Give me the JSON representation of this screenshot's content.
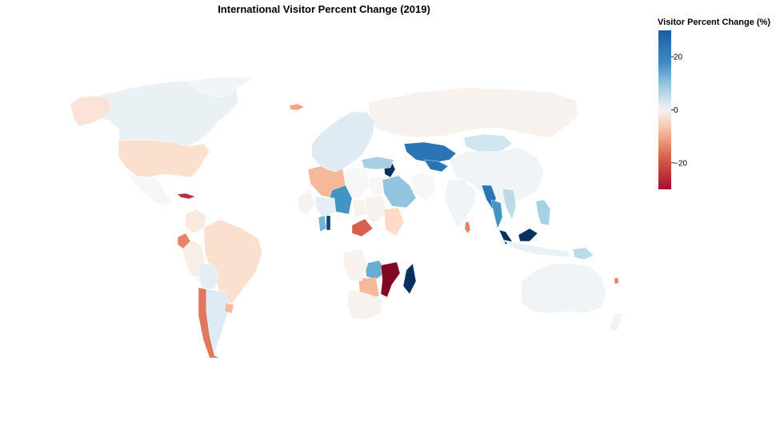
{
  "title": "International Visitor Percent Change (2019)",
  "legend": {
    "title": "Visitor Percent Change (%)",
    "min": -30,
    "max": 30,
    "ticks": [
      {
        "value": 20,
        "label": "20"
      },
      {
        "value": 0,
        "label": "0"
      },
      {
        "value": -20,
        "label": "−20"
      }
    ],
    "colors": [
      "#67001f",
      "#b2182b",
      "#d6604d",
      "#f4a582",
      "#fddbc7",
      "#f7f7f7",
      "#d1e5f0",
      "#92c5de",
      "#4393c3",
      "#2166ac",
      "#053061"
    ]
  },
  "chart_data": {
    "type": "choropleth",
    "scale": "diverging RdBu",
    "regions": [
      {
        "name": "Canada",
        "value": 2
      },
      {
        "name": "United States",
        "value": -5
      },
      {
        "name": "Greenland",
        "value": 1
      },
      {
        "name": "Alaska",
        "value": -4
      },
      {
        "name": "Iceland",
        "value": -12
      },
      {
        "name": "Mexico",
        "value": 0
      },
      {
        "name": "Cuba",
        "value": -22
      },
      {
        "name": "Colombia",
        "value": -3
      },
      {
        "name": "Ecuador",
        "value": -15
      },
      {
        "name": "Brazil",
        "value": -5
      },
      {
        "name": "Peru",
        "value": -2
      },
      {
        "name": "Bolivia",
        "value": 3
      },
      {
        "name": "Chile",
        "value": -16
      },
      {
        "name": "Argentina",
        "value": 4
      },
      {
        "name": "Uruguay",
        "value": -10
      },
      {
        "name": "Algeria",
        "value": -10
      },
      {
        "name": "Niger",
        "value": 18
      },
      {
        "name": "Libya",
        "value": 0
      },
      {
        "name": "Egypt",
        "value": 0
      },
      {
        "name": "Chad",
        "value": -1
      },
      {
        "name": "Sudan",
        "value": -1
      },
      {
        "name": "Mali",
        "value": 3
      },
      {
        "name": "Mauritania",
        "value": -1
      },
      {
        "name": "Central African Republic",
        "value": -18
      },
      {
        "name": "Ethiopia",
        "value": -6
      },
      {
        "name": "Ghana",
        "value": 28
      },
      {
        "name": "Cote d'Ivoire",
        "value": 14
      },
      {
        "name": "Zambia",
        "value": 15
      },
      {
        "name": "Mozambique",
        "value": -28
      },
      {
        "name": "Madagascar",
        "value": 30
      },
      {
        "name": "Botswana",
        "value": -10
      },
      {
        "name": "South Africa",
        "value": -1
      },
      {
        "name": "Angola",
        "value": -1
      },
      {
        "name": "Lebanon",
        "value": 30
      },
      {
        "name": "Saudi Arabia",
        "value": 12
      },
      {
        "name": "Iran",
        "value": 0
      },
      {
        "name": "Kazakhstan",
        "value": 22
      },
      {
        "name": "Uzbekistan",
        "value": 22
      },
      {
        "name": "Russia",
        "value": -1
      },
      {
        "name": "Mongolia",
        "value": 6
      },
      {
        "name": "China",
        "value": 1
      },
      {
        "name": "India",
        "value": 1
      },
      {
        "name": "Sri Lanka",
        "value": -15
      },
      {
        "name": "Myanmar",
        "value": 22
      },
      {
        "name": "Thailand",
        "value": 18
      },
      {
        "name": "Vietnam",
        "value": 8
      },
      {
        "name": "Philippines",
        "value": 10
      },
      {
        "name": "Malaysia",
        "value": 30
      },
      {
        "name": "Indonesia",
        "value": 2
      },
      {
        "name": "Papua New Guinea",
        "value": 8
      },
      {
        "name": "Australia",
        "value": 1
      },
      {
        "name": "New Zealand",
        "value": 1
      },
      {
        "name": "Fiji",
        "value": -15
      },
      {
        "name": "Europe",
        "value": 4
      },
      {
        "name": "Turkey",
        "value": 10
      }
    ]
  }
}
